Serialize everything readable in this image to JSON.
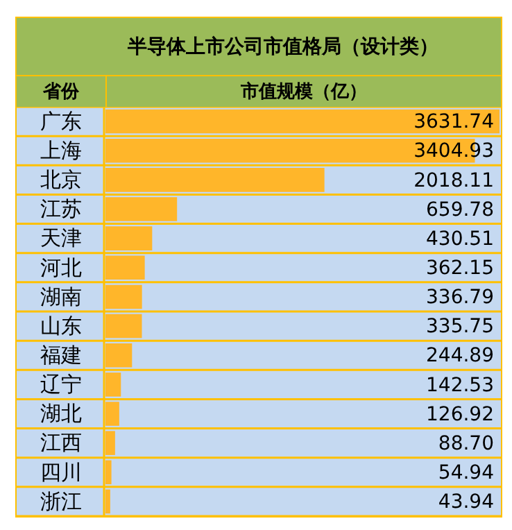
{
  "chart_data": {
    "type": "bar",
    "orientation": "horizontal",
    "title": "半导体上市公司市值格局（设计类）",
    "ylabel": "省份",
    "xlabel": "市值规模（亿）",
    "categories": [
      "广东",
      "上海",
      "北京",
      "江苏",
      "天津",
      "河北",
      "湖南",
      "山东",
      "福建",
      "辽宁",
      "湖北",
      "江西",
      "四川",
      "浙江"
    ],
    "values": [
      3631.74,
      3404.93,
      2018.11,
      659.78,
      430.51,
      362.15,
      336.79,
      335.75,
      244.89,
      142.53,
      126.92,
      88.7,
      54.94,
      43.94
    ],
    "value_labels": [
      "3631.74",
      "3404.93",
      "2018.11",
      "659.78",
      "430.51",
      "362.15",
      "336.79",
      "335.75",
      "244.89",
      "142.53",
      "126.92",
      "88.70",
      "54.94",
      "43.94"
    ],
    "color": "#ffb62a",
    "legend": false
  }
}
